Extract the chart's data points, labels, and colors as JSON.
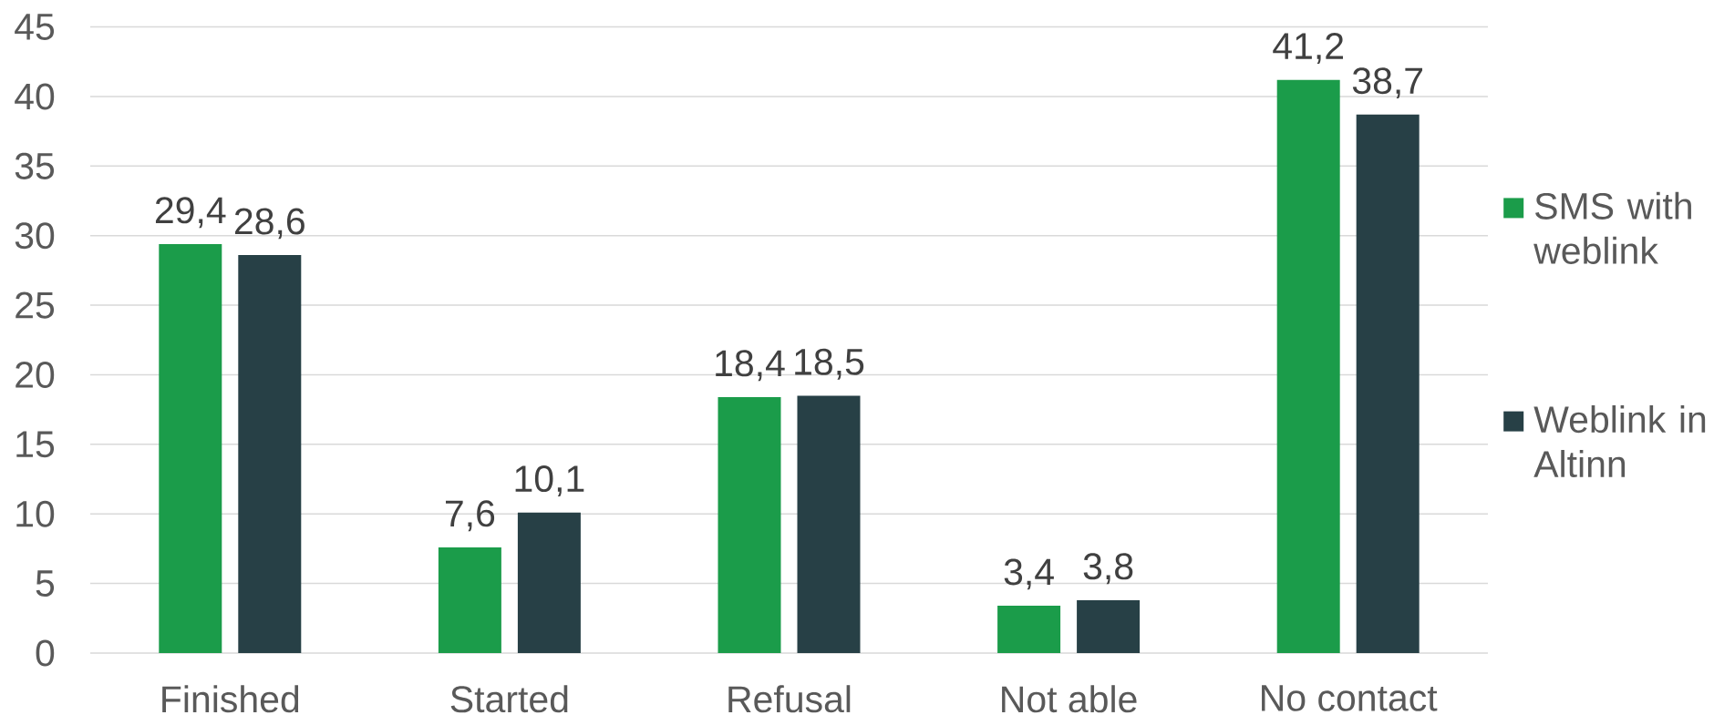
{
  "chart_data": {
    "type": "bar",
    "categories": [
      "Finished",
      "Started",
      "Refusal",
      "Not able",
      "No contact"
    ],
    "series": [
      {
        "name": "SMS with weblink",
        "color": "#1b9c4a",
        "values": [
          29.4,
          7.6,
          18.4,
          3.4,
          41.2
        ],
        "value_labels": [
          "29,4",
          "7,6",
          "18,4",
          "3,4",
          "41,2"
        ]
      },
      {
        "name": "Weblink in Altinn",
        "color": "#274046",
        "values": [
          28.6,
          10.1,
          18.5,
          3.8,
          38.7
        ],
        "value_labels": [
          "28,6",
          "10,1",
          "18,5",
          "3,8",
          "38,7"
        ]
      }
    ],
    "ylim": [
      0,
      45
    ],
    "yticks": [
      0,
      5,
      10,
      15,
      20,
      25,
      30,
      35,
      40,
      45
    ],
    "grid": "y",
    "legend": "right"
  }
}
